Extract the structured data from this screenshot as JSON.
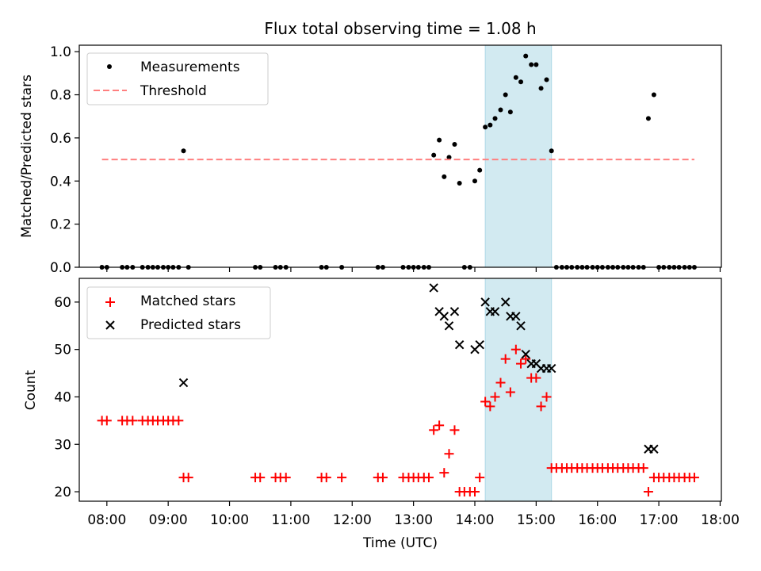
{
  "figure": {
    "title": "Flux total observing time = 1.08 h",
    "highlight_color": "#add8e6",
    "x_tick_labels": [
      "08:00",
      "09:00",
      "10:00",
      "11:00",
      "12:00",
      "13:00",
      "14:00",
      "15:00",
      "16:00",
      "17:00",
      "18:00"
    ]
  },
  "chart_data": [
    {
      "type": "scatter",
      "title": "Flux total observing time = 1.08 h",
      "xlabel": "",
      "ylabel": "Matched/Predicted stars",
      "x_unit": "hours UTC",
      "xlim": [
        7.55,
        18.02
      ],
      "ylim": [
        0,
        1.03
      ],
      "y_ticks": [
        "0.0",
        "0.2",
        "0.4",
        "0.6",
        "0.8",
        "1.0"
      ],
      "grid": false,
      "legend_position": "top-left",
      "highlight_span": [
        14.17,
        15.25
      ],
      "series": [
        {
          "name": "Measurements",
          "marker": "dot",
          "color": "#000000",
          "points": [
            [
              7.92,
              0
            ],
            [
              8.0,
              0
            ],
            [
              8.25,
              0
            ],
            [
              8.33,
              0
            ],
            [
              8.42,
              0
            ],
            [
              8.58,
              0
            ],
            [
              8.67,
              0
            ],
            [
              8.75,
              0
            ],
            [
              8.83,
              0
            ],
            [
              8.92,
              0
            ],
            [
              9.0,
              0
            ],
            [
              9.08,
              0
            ],
            [
              9.17,
              0
            ],
            [
              9.25,
              0.54
            ],
            [
              9.33,
              0
            ],
            [
              10.42,
              0
            ],
            [
              10.5,
              0
            ],
            [
              10.75,
              0
            ],
            [
              10.83,
              0
            ],
            [
              10.92,
              0
            ],
            [
              11.5,
              0
            ],
            [
              11.58,
              0
            ],
            [
              11.83,
              0
            ],
            [
              12.42,
              0
            ],
            [
              12.5,
              0
            ],
            [
              12.83,
              0
            ],
            [
              12.92,
              0
            ],
            [
              13.0,
              0
            ],
            [
              13.08,
              0
            ],
            [
              13.17,
              0
            ],
            [
              13.25,
              0
            ],
            [
              13.33,
              0.52
            ],
            [
              13.42,
              0.59
            ],
            [
              13.5,
              0.42
            ],
            [
              13.58,
              0.51
            ],
            [
              13.67,
              0.57
            ],
            [
              13.75,
              0.39
            ],
            [
              13.83,
              0
            ],
            [
              13.92,
              0
            ],
            [
              14.0,
              0.4
            ],
            [
              14.08,
              0.45
            ],
            [
              14.17,
              0.65
            ],
            [
              14.25,
              0.66
            ],
            [
              14.33,
              0.69
            ],
            [
              14.42,
              0.73
            ],
            [
              14.5,
              0.8
            ],
            [
              14.58,
              0.72
            ],
            [
              14.67,
              0.88
            ],
            [
              14.75,
              0.86
            ],
            [
              14.83,
              0.98
            ],
            [
              14.92,
              0.94
            ],
            [
              15.0,
              0.94
            ],
            [
              15.08,
              0.83
            ],
            [
              15.17,
              0.87
            ],
            [
              15.25,
              0.54
            ],
            [
              15.33,
              0
            ],
            [
              15.42,
              0
            ],
            [
              15.5,
              0
            ],
            [
              15.58,
              0
            ],
            [
              15.67,
              0
            ],
            [
              15.75,
              0
            ],
            [
              15.83,
              0
            ],
            [
              15.92,
              0
            ],
            [
              16.0,
              0
            ],
            [
              16.08,
              0
            ],
            [
              16.17,
              0
            ],
            [
              16.25,
              0
            ],
            [
              16.33,
              0
            ],
            [
              16.42,
              0
            ],
            [
              16.5,
              0
            ],
            [
              16.58,
              0
            ],
            [
              16.67,
              0
            ],
            [
              16.75,
              0
            ],
            [
              16.83,
              0.69
            ],
            [
              16.92,
              0.8
            ],
            [
              17.0,
              0
            ],
            [
              17.08,
              0
            ],
            [
              17.17,
              0
            ],
            [
              17.25,
              0
            ],
            [
              17.33,
              0
            ],
            [
              17.42,
              0
            ],
            [
              17.5,
              0
            ],
            [
              17.58,
              0
            ]
          ]
        },
        {
          "name": "Threshold",
          "style": "dashed",
          "color": "#ff7f7f",
          "points": [
            [
              7.92,
              0.5
            ],
            [
              17.58,
              0.5
            ]
          ]
        }
      ]
    },
    {
      "type": "scatter",
      "title": "",
      "xlabel": "Time (UTC)",
      "ylabel": "Count",
      "x_unit": "hours UTC",
      "xlim": [
        7.55,
        18.02
      ],
      "ylim": [
        18,
        65
      ],
      "y_ticks": [
        "20",
        "30",
        "40",
        "50",
        "60"
      ],
      "grid": false,
      "legend_position": "top-left",
      "highlight_span": [
        14.17,
        15.25
      ],
      "series": [
        {
          "name": "Matched stars",
          "marker": "plus",
          "color": "#ff0000",
          "points": [
            [
              7.92,
              35
            ],
            [
              8.0,
              35
            ],
            [
              8.25,
              35
            ],
            [
              8.33,
              35
            ],
            [
              8.42,
              35
            ],
            [
              8.58,
              35
            ],
            [
              8.67,
              35
            ],
            [
              8.75,
              35
            ],
            [
              8.83,
              35
            ],
            [
              8.92,
              35
            ],
            [
              9.0,
              35
            ],
            [
              9.08,
              35
            ],
            [
              9.17,
              35
            ],
            [
              9.25,
              23
            ],
            [
              9.33,
              23
            ],
            [
              10.42,
              23
            ],
            [
              10.5,
              23
            ],
            [
              10.75,
              23
            ],
            [
              10.83,
              23
            ],
            [
              10.92,
              23
            ],
            [
              11.5,
              23
            ],
            [
              11.58,
              23
            ],
            [
              11.83,
              23
            ],
            [
              12.42,
              23
            ],
            [
              12.5,
              23
            ],
            [
              12.83,
              23
            ],
            [
              12.92,
              23
            ],
            [
              13.0,
              23
            ],
            [
              13.08,
              23
            ],
            [
              13.17,
              23
            ],
            [
              13.25,
              23
            ],
            [
              13.33,
              33
            ],
            [
              13.42,
              34
            ],
            [
              13.5,
              24
            ],
            [
              13.58,
              28
            ],
            [
              13.67,
              33
            ],
            [
              13.75,
              20
            ],
            [
              13.83,
              20
            ],
            [
              13.92,
              20
            ],
            [
              14.0,
              20
            ],
            [
              14.08,
              23
            ],
            [
              14.17,
              39
            ],
            [
              14.25,
              38
            ],
            [
              14.33,
              40
            ],
            [
              14.42,
              43
            ],
            [
              14.5,
              48
            ],
            [
              14.58,
              41
            ],
            [
              14.67,
              50
            ],
            [
              14.75,
              47
            ],
            [
              14.83,
              48
            ],
            [
              14.92,
              44
            ],
            [
              15.0,
              44
            ],
            [
              15.08,
              38
            ],
            [
              15.17,
              40
            ],
            [
              15.25,
              25
            ],
            [
              15.33,
              25
            ],
            [
              15.42,
              25
            ],
            [
              15.5,
              25
            ],
            [
              15.58,
              25
            ],
            [
              15.67,
              25
            ],
            [
              15.75,
              25
            ],
            [
              15.83,
              25
            ],
            [
              15.92,
              25
            ],
            [
              16.0,
              25
            ],
            [
              16.08,
              25
            ],
            [
              16.17,
              25
            ],
            [
              16.25,
              25
            ],
            [
              16.33,
              25
            ],
            [
              16.42,
              25
            ],
            [
              16.5,
              25
            ],
            [
              16.58,
              25
            ],
            [
              16.67,
              25
            ],
            [
              16.75,
              25
            ],
            [
              16.83,
              20
            ],
            [
              16.92,
              23
            ],
            [
              17.0,
              23
            ],
            [
              17.08,
              23
            ],
            [
              17.17,
              23
            ],
            [
              17.25,
              23
            ],
            [
              17.33,
              23
            ],
            [
              17.42,
              23
            ],
            [
              17.5,
              23
            ],
            [
              17.58,
              23
            ]
          ]
        },
        {
          "name": "Predicted stars",
          "marker": "x",
          "color": "#000000",
          "points": [
            [
              9.25,
              43
            ],
            [
              13.33,
              63
            ],
            [
              13.42,
              58
            ],
            [
              13.5,
              57
            ],
            [
              13.58,
              55
            ],
            [
              13.67,
              58
            ],
            [
              13.75,
              51
            ],
            [
              14.0,
              50
            ],
            [
              14.08,
              51
            ],
            [
              14.17,
              60
            ],
            [
              14.25,
              58
            ],
            [
              14.33,
              58
            ],
            [
              14.5,
              60
            ],
            [
              14.58,
              57
            ],
            [
              14.67,
              57
            ],
            [
              14.75,
              55
            ],
            [
              14.83,
              49
            ],
            [
              14.92,
              47
            ],
            [
              15.0,
              47
            ],
            [
              15.08,
              46
            ],
            [
              15.17,
              46
            ],
            [
              15.25,
              46
            ],
            [
              16.83,
              29
            ],
            [
              16.92,
              29
            ]
          ]
        }
      ]
    }
  ]
}
